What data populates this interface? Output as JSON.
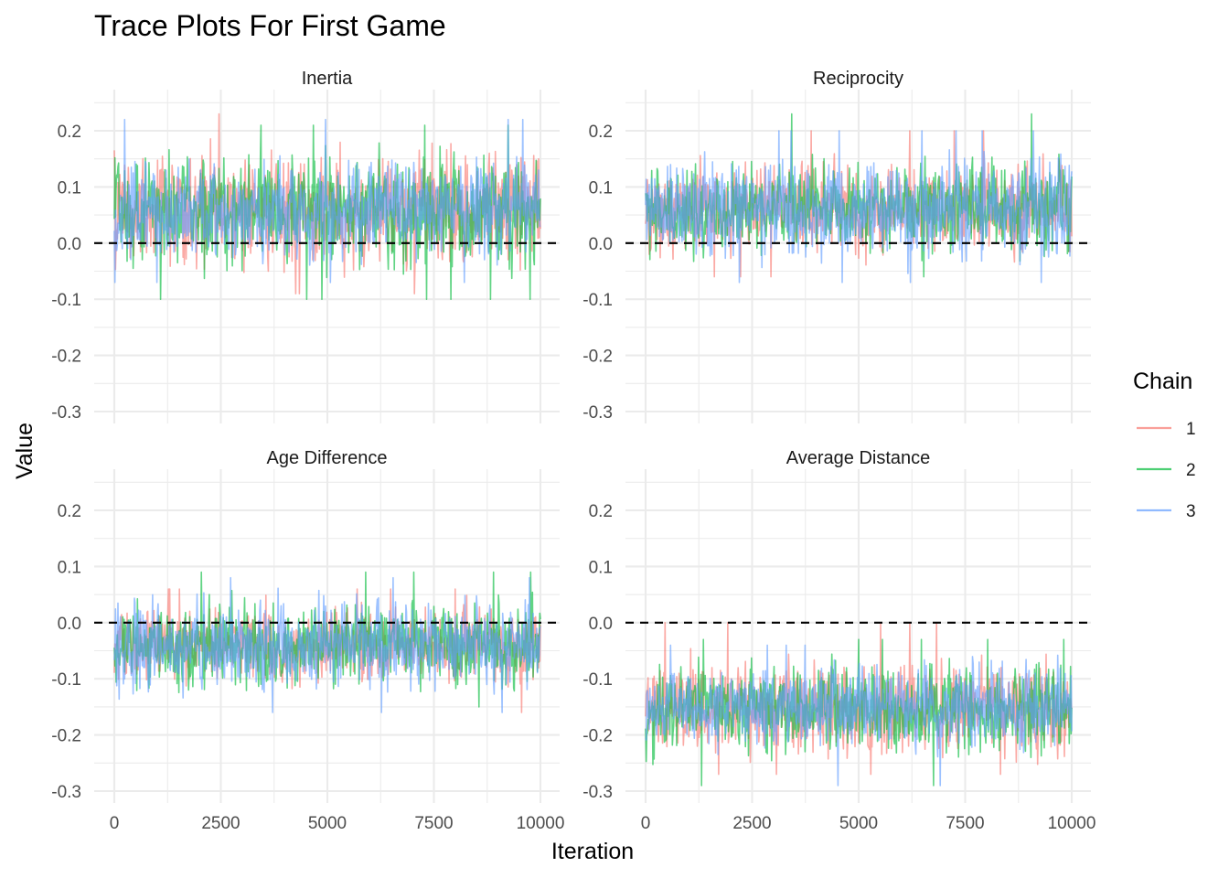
{
  "chart_data": {
    "type": "line",
    "title": "Trace Plots For First Game",
    "xlabel": "Iteration",
    "ylabel": "Value",
    "xlim": [
      0,
      10000
    ],
    "ylim": [
      -0.3,
      0.22
    ],
    "x_ticks": [
      0,
      2500,
      5000,
      7500,
      10000
    ],
    "x_tick_labels": [
      "0",
      "2500",
      "5000",
      "7500",
      "10000"
    ],
    "y_ticks": [
      0.2,
      0.1,
      0.0,
      -0.1,
      -0.2,
      -0.3
    ],
    "y_tick_labels": [
      "0.2",
      "0.1",
      "0.0",
      "-0.1",
      "-0.2",
      "-0.3"
    ],
    "reference_line": {
      "y": 0,
      "style": "dashed"
    },
    "grid": true,
    "legend": {
      "title": "Chain",
      "placement": "right",
      "entries": [
        {
          "label": "1",
          "color": "#F8766D"
        },
        {
          "label": "2",
          "color": "#00BA38"
        },
        {
          "label": "3",
          "color": "#619CFF"
        }
      ]
    },
    "panels": [
      {
        "name": "Inertia",
        "iterations": 10000,
        "series": [
          {
            "name": "1",
            "mean": 0.06,
            "min": -0.09,
            "max": 0.23
          },
          {
            "name": "2",
            "mean": 0.06,
            "min": -0.1,
            "max": 0.21
          },
          {
            "name": "3",
            "mean": 0.06,
            "min": -0.07,
            "max": 0.22
          }
        ]
      },
      {
        "name": "Reciprocity",
        "iterations": 10000,
        "series": [
          {
            "name": "1",
            "mean": 0.06,
            "min": -0.06,
            "max": 0.2
          },
          {
            "name": "2",
            "mean": 0.06,
            "min": -0.06,
            "max": 0.23
          },
          {
            "name": "3",
            "mean": 0.06,
            "min": -0.07,
            "max": 0.2
          }
        ]
      },
      {
        "name": "Age Difference",
        "iterations": 10000,
        "series": [
          {
            "name": "1",
            "mean": -0.04,
            "min": -0.16,
            "max": 0.06
          },
          {
            "name": "2",
            "mean": -0.04,
            "min": -0.15,
            "max": 0.09
          },
          {
            "name": "3",
            "mean": -0.04,
            "min": -0.16,
            "max": 0.08
          }
        ]
      },
      {
        "name": "Average Distance",
        "iterations": 10000,
        "series": [
          {
            "name": "1",
            "mean": -0.15,
            "min": -0.27,
            "max": 0.0
          },
          {
            "name": "2",
            "mean": -0.15,
            "min": -0.29,
            "max": -0.03
          },
          {
            "name": "3",
            "mean": -0.15,
            "min": -0.29,
            "max": -0.04
          }
        ]
      }
    ]
  }
}
